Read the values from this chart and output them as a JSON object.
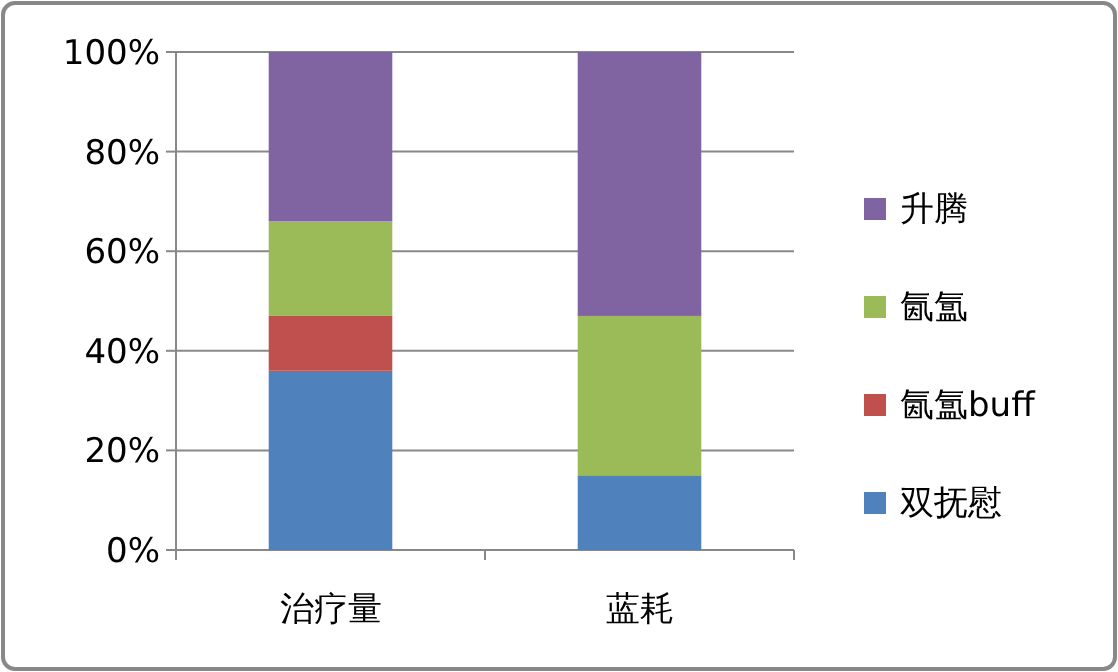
{
  "chart_data": {
    "type": "bar",
    "stacked": true,
    "categories": [
      "治疗量",
      "蓝耗"
    ],
    "series": [
      {
        "name": "双抚慰",
        "color": "#4f81bd",
        "values": [
          36,
          15
        ]
      },
      {
        "name": "氤氲buff",
        "color": "#c0504d",
        "values": [
          11,
          0
        ]
      },
      {
        "name": "氤氲",
        "color": "#9bbb59",
        "values": [
          19,
          32
        ]
      },
      {
        "name": "升腾",
        "color": "#8064a2",
        "values": [
          34,
          53
        ]
      }
    ],
    "ylim": [
      0,
      100
    ],
    "yticks": [
      {
        "value": 0,
        "label": "0%"
      },
      {
        "value": 20,
        "label": "20%"
      },
      {
        "value": 40,
        "label": "40%"
      },
      {
        "value": 60,
        "label": "60%"
      },
      {
        "value": 80,
        "label": "80%"
      },
      {
        "value": 100,
        "label": "100%"
      }
    ],
    "grid": "y",
    "legend": "right"
  }
}
